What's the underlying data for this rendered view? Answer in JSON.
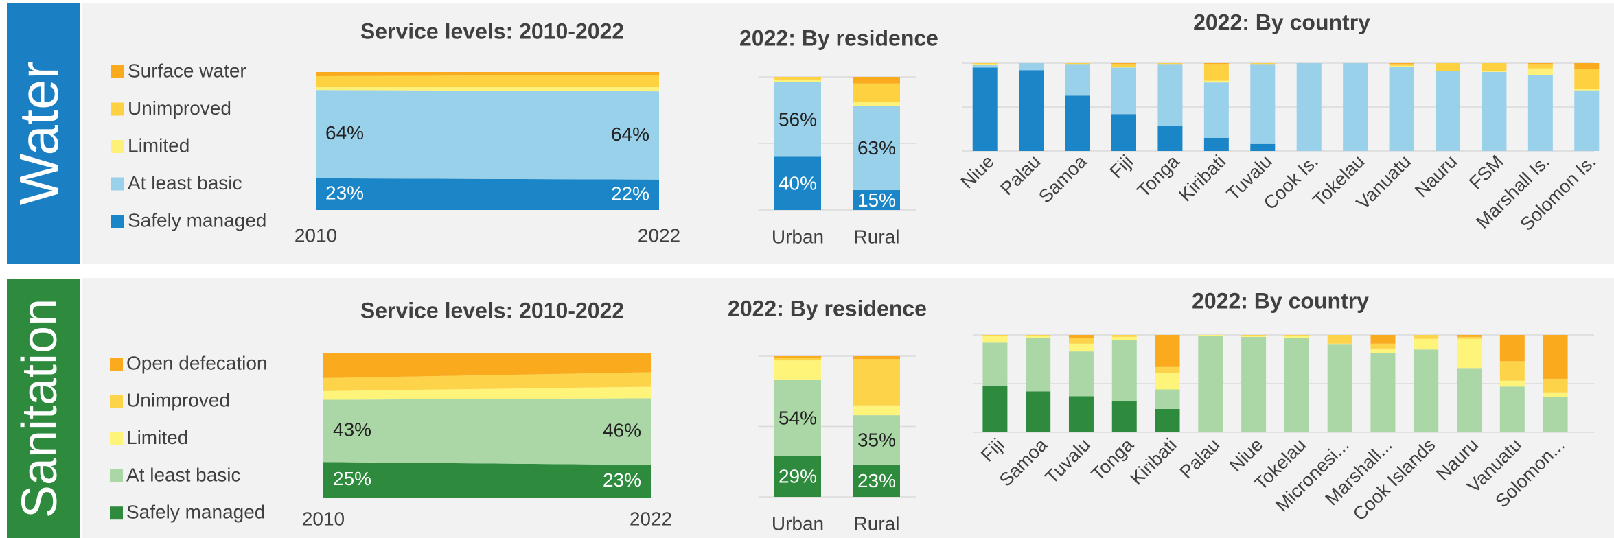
{
  "sections": [
    {
      "label": "Water"
    },
    {
      "label": "Sanitation"
    }
  ],
  "chart_data": [
    {
      "type": "area",
      "stacked": true,
      "title": "Service levels: 2010-2022",
      "x": [
        2010,
        2022
      ],
      "xlim": [
        2010,
        2022
      ],
      "xticks": [
        2010,
        2022
      ],
      "ylim": [
        0,
        100
      ],
      "legend": "left",
      "series": [
        {
          "name": "Safely managed",
          "color": "#1a86c8",
          "values": [
            23,
            22
          ],
          "value_labels": [
            "23%",
            "22%"
          ]
        },
        {
          "name": "At least basic",
          "color": "#99d0ea",
          "values": [
            64,
            64
          ],
          "value_labels": [
            "64%",
            "64%"
          ]
        },
        {
          "name": "Limited",
          "color": "#fdf17a",
          "values": [
            2,
            3
          ]
        },
        {
          "name": "Unimproved",
          "color": "#fed140",
          "values": [
            8,
            9
          ]
        },
        {
          "name": "Surface water",
          "color": "#f9ab1d",
          "values": [
            3,
            2
          ]
        }
      ]
    },
    {
      "type": "bar",
      "stacked": true,
      "title": "2022: By residence",
      "categories": [
        "Urban",
        "Rural"
      ],
      "ylim": [
        0,
        100
      ],
      "yticks": [
        0,
        50,
        100
      ],
      "grid": true,
      "series": [
        {
          "color": "#1a86c8",
          "values": [
            40,
            15
          ],
          "value_labels": [
            "40%",
            "15%"
          ]
        },
        {
          "color": "#99d0ea",
          "values": [
            56,
            63
          ],
          "value_labels": [
            "56%",
            "63%"
          ]
        },
        {
          "color": "#fdf17a",
          "values": [
            2,
            3
          ]
        },
        {
          "color": "#fed140",
          "values": [
            2,
            14
          ]
        },
        {
          "color": "#f9ab1d",
          "values": [
            0,
            5
          ]
        }
      ]
    },
    {
      "type": "bar",
      "stacked": true,
      "title": "2022: By country",
      "categories": [
        "Niue",
        "Palau",
        "Samoa",
        "Fiji",
        "Tonga",
        "Kiribati",
        "Tuvalu",
        "Cook Is.",
        "Tokelau",
        "Vanuatu",
        "Nauru",
        "FSM",
        "Marshall Is.",
        "Solomon Is."
      ],
      "ylim": [
        0,
        100
      ],
      "yticks": [
        0,
        50,
        100
      ],
      "grid": true,
      "series": [
        {
          "color": "#1a86c8",
          "values": [
            95,
            92,
            63,
            42,
            29,
            15,
            8,
            0,
            0,
            0,
            0,
            0,
            0,
            0
          ]
        },
        {
          "color": "#99d0ea",
          "values": [
            3,
            8,
            36,
            53,
            70,
            63,
            91,
            100,
            100,
            96,
            91,
            90,
            86,
            69
          ]
        },
        {
          "color": "#fdf17a",
          "values": [
            1,
            0,
            0,
            1,
            0,
            2,
            0,
            0,
            0,
            1,
            0,
            1,
            8,
            2
          ]
        },
        {
          "color": "#fed140",
          "values": [
            1,
            0,
            1,
            3,
            1,
            19,
            1,
            0,
            0,
            2,
            9,
            9,
            5,
            22
          ]
        },
        {
          "color": "#f9ab1d",
          "values": [
            0,
            0,
            0,
            1,
            0,
            1,
            0,
            0,
            0,
            1,
            0,
            0,
            1,
            7
          ]
        }
      ]
    },
    {
      "type": "area",
      "stacked": true,
      "title": "Service levels: 2010-2022",
      "x": [
        2010,
        2022
      ],
      "xlim": [
        2010,
        2022
      ],
      "xticks": [
        2010,
        2022
      ],
      "ylim": [
        0,
        100
      ],
      "legend": "left",
      "series": [
        {
          "name": "Safely managed",
          "color": "#2e8b3e",
          "values": [
            25,
            23
          ],
          "value_labels": [
            "25%",
            "23%"
          ]
        },
        {
          "name": "At least basic",
          "color": "#abd7a7",
          "values": [
            43,
            46
          ],
          "value_labels": [
            "43%",
            "46%"
          ]
        },
        {
          "name": "Limited",
          "color": "#fff47a",
          "values": [
            6,
            8
          ]
        },
        {
          "name": "Unimproved",
          "color": "#fdd34a",
          "values": [
            9,
            10
          ]
        },
        {
          "name": "Open defecation",
          "color": "#f9ab1d",
          "values": [
            17,
            13
          ]
        }
      ]
    },
    {
      "type": "bar",
      "stacked": true,
      "title": "2022: By residence",
      "categories": [
        "Urban",
        "Rural"
      ],
      "ylim": [
        0,
        100
      ],
      "yticks": [
        0,
        50,
        100
      ],
      "grid": true,
      "series": [
        {
          "color": "#2e8b3e",
          "values": [
            29,
            23
          ],
          "value_labels": [
            "29%",
            "23%"
          ]
        },
        {
          "color": "#abd7a7",
          "values": [
            54,
            35
          ],
          "value_labels": [
            "54%",
            "35%"
          ]
        },
        {
          "color": "#fff47a",
          "values": [
            14,
            7
          ]
        },
        {
          "color": "#fdd34a",
          "values": [
            2,
            33
          ]
        },
        {
          "color": "#f9ab1d",
          "values": [
            1,
            2
          ]
        }
      ]
    },
    {
      "type": "bar",
      "stacked": true,
      "title": "2022: By country",
      "categories": [
        "Fiji",
        "Samoa",
        "Tuvalu",
        "Tonga",
        "Kiribati",
        "Palau",
        "Niue",
        "Tokelau",
        "Micronesi...",
        "Marshall...",
        "Cook Islands",
        "Nauru",
        "Vanuatu",
        "Solomon..."
      ],
      "ylim": [
        0,
        100
      ],
      "yticks": [
        0,
        50,
        100
      ],
      "grid": true,
      "series": [
        {
          "color": "#2e8b3e",
          "values": [
            48,
            42,
            37,
            32,
            24,
            0,
            0,
            0,
            0,
            0,
            0,
            0,
            0,
            0
          ]
        },
        {
          "color": "#abd7a7",
          "values": [
            44,
            55,
            46,
            63,
            20,
            99,
            98,
            97,
            90,
            81,
            85,
            66,
            47,
            36
          ]
        },
        {
          "color": "#fff47a",
          "values": [
            7,
            2,
            8,
            3,
            17,
            1,
            1,
            2,
            1,
            5,
            11,
            30,
            6,
            5
          ]
        },
        {
          "color": "#fdd34a",
          "values": [
            1,
            1,
            6,
            2,
            6,
            0,
            1,
            1,
            9,
            5,
            4,
            2,
            20,
            14
          ]
        },
        {
          "color": "#f9ab1d",
          "values": [
            0,
            0,
            3,
            0,
            33,
            0,
            0,
            0,
            0,
            9,
            0,
            2,
            27,
            45
          ]
        }
      ]
    }
  ]
}
